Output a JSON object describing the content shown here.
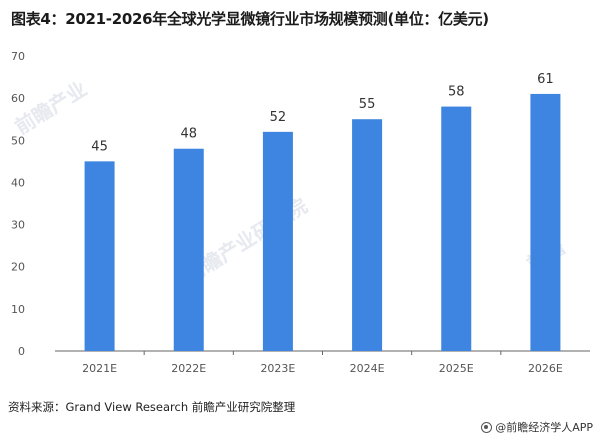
{
  "title": "图表4：2021-2026年全球光学显微镜行业市场规模预测(单位：亿美元)",
  "source": "资料来源：Grand View Research 前瞻产业研究院整理",
  "brand": "@前瞻经济学人APP",
  "watermark": {
    "left": "前瞻产业",
    "middle": "前瞻产业研究院",
    "right": "前瞻"
  },
  "colors": {
    "bar": "#3d85e0",
    "axis": "#666666",
    "tick_label": "#555555",
    "data_label": "#333333"
  },
  "chart_data": {
    "type": "bar",
    "title": "图表4：2021-2026年全球光学显微镜行业市场规模预测(单位：亿美元)",
    "xlabel": "",
    "ylabel": "",
    "categories": [
      "2021E",
      "2022E",
      "2023E",
      "2024E",
      "2025E",
      "2026E"
    ],
    "values": [
      45,
      48,
      52,
      55,
      58,
      61
    ],
    "ylim": [
      0,
      70
    ],
    "yticks": [
      0,
      10,
      20,
      30,
      40,
      50,
      60,
      70
    ],
    "grid": false,
    "legend": "none"
  }
}
